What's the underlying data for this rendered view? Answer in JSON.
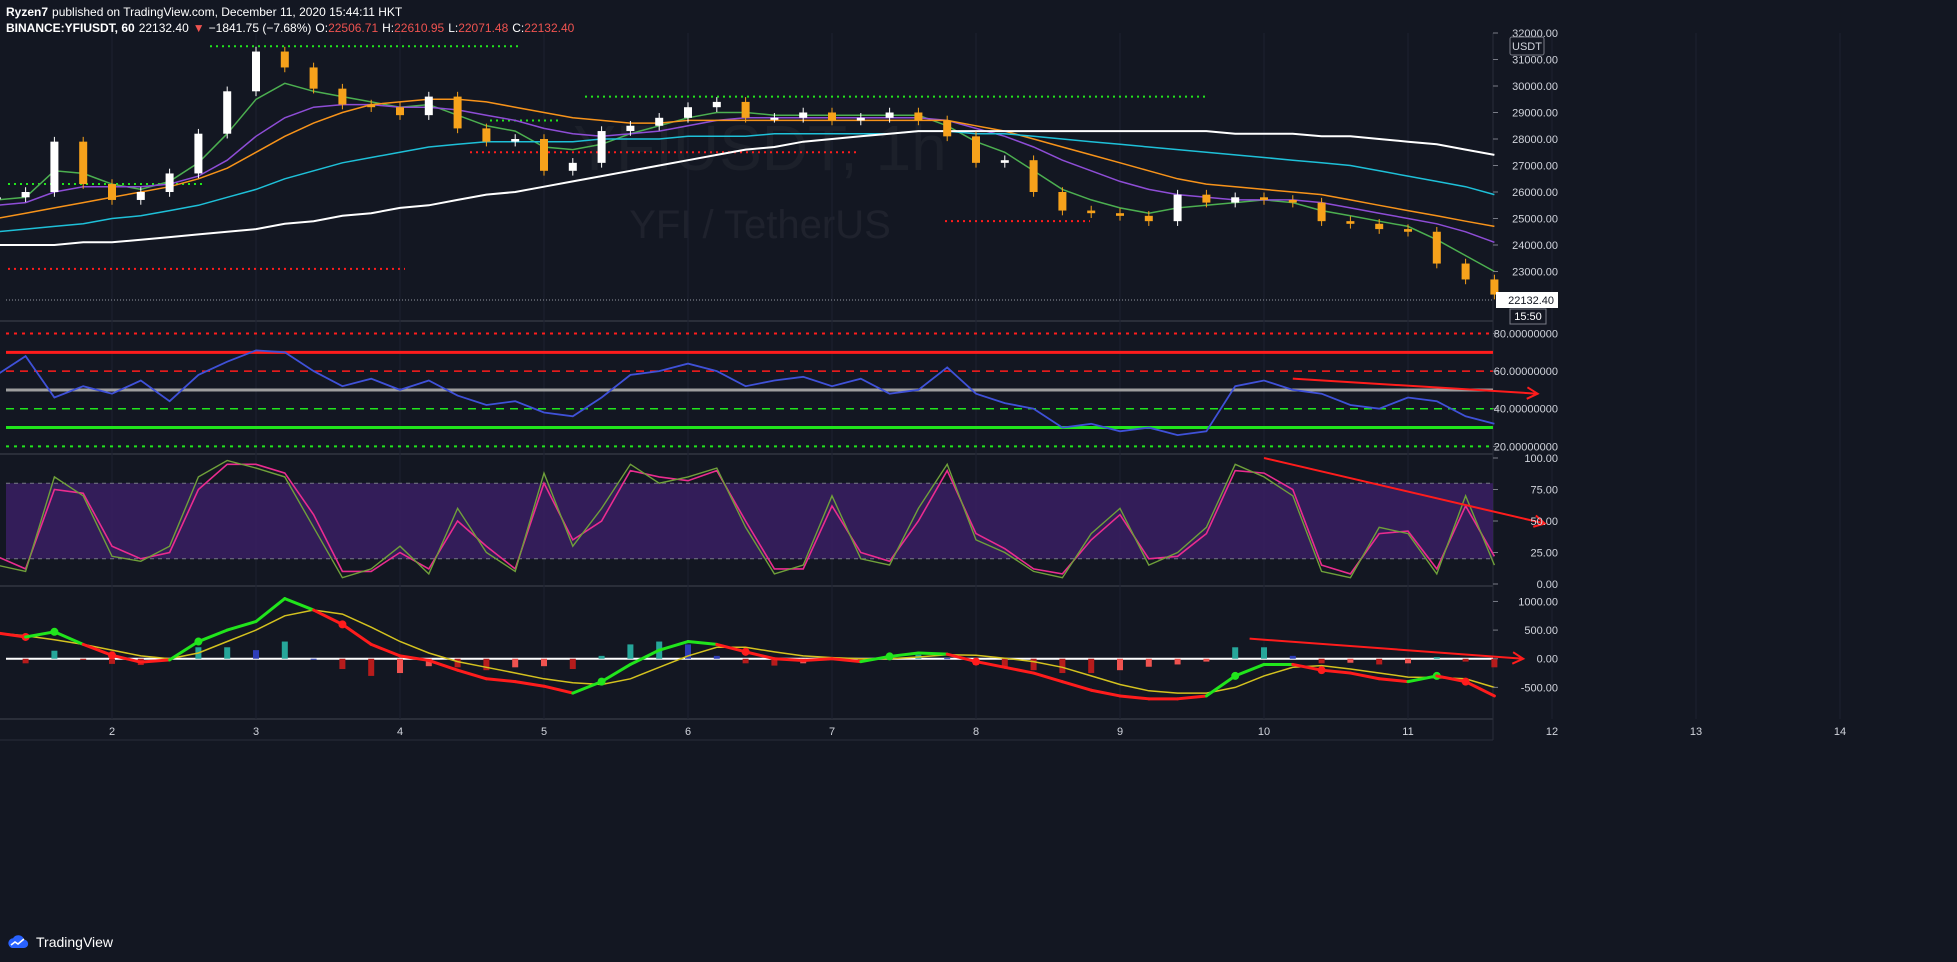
{
  "header": {
    "author": "Ryzen7",
    "published": "published on TradingView.com, December 11, 2020 15:44:11 HKT",
    "symbol": "BINANCE:YFIUSDT, 60",
    "last": "22132.40",
    "change": "−1841.75 (−7.68%)",
    "o_label": "O:",
    "o_val": "22506.71",
    "h_label": "H:",
    "h_val": "22610.95",
    "l_label": "L:",
    "l_val": "22071.48",
    "c_label": "C:",
    "c_val": "22132.40"
  },
  "watermark": {
    "ticker": "YFIUSDT, 1h",
    "name": "YFI / TetherUS"
  },
  "footer": {
    "brand": "TradingView"
  },
  "colors": {
    "background": "#131722",
    "up": "#ffffff",
    "down": "#f7a21b",
    "red": "#ff1c1c",
    "green": "#21e51c",
    "rsi": "#3f51d8",
    "stoch_fill": "#3a1f63",
    "pink": "#ea2c8f",
    "olive": "#6fa03a"
  },
  "chart_data": [
    {
      "type": "line",
      "pane": "price",
      "title": "",
      "currency": "USDT",
      "ylim": [
        22000,
        32000
      ],
      "y_ticks": [
        "32000.00",
        "31000.00",
        "30000.00",
        "29000.00",
        "28000.00",
        "27000.00",
        "26000.00",
        "25000.00",
        "24000.00",
        "23000.00"
      ],
      "x_tick_labels": [
        "2",
        "3",
        "4",
        "5",
        "6",
        "7",
        "8",
        "9",
        "10",
        "11",
        "12",
        "13",
        "14"
      ],
      "last_price_label": "22132.40",
      "countdown": "15:50",
      "x": [
        1.2,
        1.4,
        1.6,
        1.8,
        2.0,
        2.2,
        2.4,
        2.6,
        2.8,
        3.0,
        3.2,
        3.4,
        3.6,
        3.8,
        4.0,
        4.2,
        4.4,
        4.6,
        4.8,
        5.0,
        5.2,
        5.4,
        5.6,
        5.8,
        6.0,
        6.2,
        6.4,
        6.6,
        6.8,
        7.0,
        7.2,
        7.4,
        7.6,
        7.8,
        8.0,
        8.2,
        8.4,
        8.6,
        8.8,
        9.0,
        9.2,
        9.4,
        9.6,
        9.8,
        10.0,
        10.2,
        10.4,
        10.6,
        10.8,
        11.0,
        11.2,
        11.4,
        11.6
      ],
      "series": [
        {
          "role": "close",
          "values": [
            25800,
            26000,
            27900,
            26300,
            25700,
            26000,
            26700,
            28200,
            29800,
            31300,
            30700,
            29900,
            29300,
            29200,
            28900,
            29600,
            28400,
            27900,
            28000,
            26800,
            27100,
            28300,
            28500,
            28800,
            29200,
            29400,
            28800,
            28800,
            29000,
            28700,
            28800,
            29000,
            28700,
            28100,
            27100,
            27200,
            26000,
            25300,
            25200,
            25100,
            24900,
            25900,
            25600,
            25800,
            25700,
            25600,
            24900,
            24800,
            24600,
            24500,
            23300,
            22700,
            22130
          ]
        },
        {
          "role": "ma-fast",
          "values": [
            25700,
            25800,
            26800,
            26700,
            26300,
            26100,
            26400,
            27100,
            28200,
            29500,
            30100,
            29800,
            29600,
            29400,
            29200,
            29300,
            28900,
            28500,
            28300,
            27700,
            27600,
            27800,
            28200,
            28500,
            28800,
            29000,
            29000,
            28900,
            28900,
            28900,
            28900,
            28900,
            28900,
            28500,
            27900,
            27500,
            26800,
            26100,
            25700,
            25400,
            25200,
            25400,
            25500,
            25600,
            25700,
            25600,
            25300,
            25100,
            24900,
            24700,
            24200,
            23600,
            23000
          ]
        },
        {
          "role": "ma-mid",
          "values": [
            25500,
            25600,
            26000,
            26200,
            26200,
            26200,
            26300,
            26600,
            27200,
            28100,
            28800,
            29200,
            29300,
            29300,
            29200,
            29200,
            29100,
            28900,
            28700,
            28400,
            28200,
            28100,
            28200,
            28300,
            28500,
            28700,
            28800,
            28800,
            28800,
            28800,
            28800,
            28800,
            28800,
            28700,
            28400,
            28100,
            27700,
            27200,
            26800,
            26400,
            26100,
            25900,
            25800,
            25700,
            25700,
            25700,
            25600,
            25400,
            25200,
            25000,
            24800,
            24500,
            24100
          ]
        },
        {
          "role": "ma-orange",
          "values": [
            25000,
            25200,
            25400,
            25600,
            25800,
            26000,
            26200,
            26500,
            26900,
            27500,
            28100,
            28600,
            29000,
            29300,
            29400,
            29500,
            29500,
            29400,
            29200,
            29000,
            28800,
            28700,
            28600,
            28600,
            28700,
            28700,
            28700,
            28700,
            28700,
            28700,
            28700,
            28700,
            28700,
            28700,
            28500,
            28300,
            28000,
            27700,
            27400,
            27100,
            26800,
            26500,
            26300,
            26200,
            26100,
            26000,
            25900,
            25700,
            25500,
            25300,
            25100,
            24900,
            24700
          ]
        },
        {
          "role": "ma-cyan",
          "values": [
            24500,
            24600,
            24700,
            24800,
            25000,
            25100,
            25300,
            25500,
            25800,
            26100,
            26500,
            26800,
            27100,
            27300,
            27500,
            27700,
            27800,
            27900,
            27900,
            27900,
            27900,
            28000,
            28000,
            28000,
            28100,
            28100,
            28100,
            28200,
            28200,
            28200,
            28200,
            28200,
            28300,
            28300,
            28200,
            28200,
            28100,
            28000,
            27900,
            27800,
            27700,
            27600,
            27500,
            27400,
            27300,
            27200,
            27100,
            27000,
            26800,
            26600,
            26400,
            26200,
            25900
          ]
        },
        {
          "role": "ma-white",
          "values": [
            24000,
            24000,
            24000,
            24100,
            24100,
            24200,
            24300,
            24400,
            24500,
            24600,
            24800,
            24900,
            25100,
            25200,
            25400,
            25500,
            25700,
            25900,
            26000,
            26200,
            26400,
            26600,
            26800,
            27000,
            27200,
            27400,
            27600,
            27700,
            27900,
            28000,
            28100,
            28200,
            28300,
            28300,
            28300,
            28300,
            28300,
            28300,
            28300,
            28300,
            28300,
            28300,
            28300,
            28200,
            28200,
            28200,
            28100,
            28100,
            28000,
            27900,
            27800,
            27600,
            27400
          ]
        }
      ]
    },
    {
      "type": "line",
      "pane": "rsi",
      "ylim": [
        17,
        84
      ],
      "y_ticks": [
        "80.00000000",
        "60.00000000",
        "40.00000000",
        "20.00000000"
      ],
      "levels": {
        "red_dotted": 80,
        "red_solid": 70,
        "red_dashed": 60,
        "grey": 50,
        "green_dashed": 40,
        "green_solid": 30,
        "green_dotted": 20
      },
      "x": [
        1.2,
        1.4,
        1.6,
        1.8,
        2.0,
        2.2,
        2.4,
        2.6,
        2.8,
        3.0,
        3.2,
        3.4,
        3.6,
        3.8,
        4.0,
        4.2,
        4.4,
        4.6,
        4.8,
        5.0,
        5.2,
        5.4,
        5.6,
        5.8,
        6.0,
        6.2,
        6.4,
        6.6,
        6.8,
        7.0,
        7.2,
        7.4,
        7.6,
        7.8,
        8.0,
        8.2,
        8.4,
        8.6,
        8.8,
        9.0,
        9.2,
        9.4,
        9.6,
        9.8,
        10.0,
        10.2,
        10.4,
        10.6,
        10.8,
        11.0,
        11.2,
        11.4,
        11.6
      ],
      "series": [
        {
          "values": [
            58,
            68,
            46,
            52,
            48,
            55,
            44,
            58,
            65,
            71,
            70,
            60,
            52,
            56,
            50,
            55,
            47,
            42,
            44,
            38,
            36,
            46,
            58,
            60,
            64,
            60,
            52,
            55,
            57,
            52,
            56,
            48,
            50,
            62,
            48,
            43,
            40,
            30,
            32,
            28,
            30,
            26,
            28,
            52,
            55,
            50,
            48,
            42,
            40,
            46,
            44,
            36,
            32
          ]
        }
      ],
      "annotation": {
        "type": "arrow",
        "from": [
          10.2,
          56
        ],
        "to": [
          11.9,
          48
        ]
      }
    },
    {
      "type": "line",
      "pane": "stoch",
      "ylim": [
        0,
        100
      ],
      "y_ticks": [
        "100.00",
        "75.00",
        "50.00",
        "25.00",
        "0.00"
      ],
      "band": [
        20,
        80
      ],
      "x": [
        1.2,
        1.4,
        1.6,
        1.8,
        2.0,
        2.2,
        2.4,
        2.6,
        2.8,
        3.0,
        3.2,
        3.4,
        3.6,
        3.8,
        4.0,
        4.2,
        4.4,
        4.6,
        4.8,
        5.0,
        5.2,
        5.4,
        5.6,
        5.8,
        6.0,
        6.2,
        6.4,
        6.6,
        6.8,
        7.0,
        7.2,
        7.4,
        7.6,
        7.8,
        8.0,
        8.2,
        8.4,
        8.6,
        8.8,
        9.0,
        9.2,
        9.4,
        9.6,
        9.8,
        10.0,
        10.2,
        10.4,
        10.6,
        10.8,
        11.0,
        11.2,
        11.4,
        11.6
      ],
      "series": [
        {
          "name": "",
          "values": [
            15,
            10,
            85,
            70,
            22,
            18,
            30,
            85,
            98,
            92,
            85,
            45,
            5,
            12,
            30,
            8,
            60,
            25,
            10,
            88,
            30,
            60,
            95,
            80,
            85,
            92,
            45,
            8,
            15,
            70,
            20,
            15,
            60,
            95,
            35,
            25,
            10,
            5,
            40,
            60,
            15,
            25,
            45,
            95,
            85,
            70,
            10,
            5,
            45,
            40,
            8,
            70,
            15
          ]
        },
        {
          "name": "",
          "values": [
            22,
            12,
            75,
            72,
            30,
            20,
            25,
            75,
            95,
            95,
            88,
            55,
            10,
            10,
            25,
            12,
            50,
            30,
            12,
            80,
            35,
            50,
            90,
            85,
            82,
            90,
            50,
            12,
            12,
            62,
            25,
            18,
            50,
            90,
            40,
            28,
            12,
            8,
            35,
            55,
            20,
            22,
            40,
            90,
            88,
            75,
            15,
            8,
            40,
            42,
            12,
            62,
            22
          ]
        }
      ],
      "annotation": {
        "type": "arrow",
        "from": [
          10.0,
          100
        ],
        "to": [
          11.95,
          48
        ]
      }
    },
    {
      "type": "bar",
      "pane": "macd",
      "ylim": [
        -1000,
        1200
      ],
      "y_ticks": [
        "1000.00",
        "500.00",
        "0.00",
        "-500.00"
      ],
      "x": [
        1.2,
        1.4,
        1.6,
        1.8,
        2.0,
        2.2,
        2.4,
        2.6,
        2.8,
        3.0,
        3.2,
        3.4,
        3.6,
        3.8,
        4.0,
        4.2,
        4.4,
        4.6,
        4.8,
        5.0,
        5.2,
        5.4,
        5.6,
        5.8,
        6.0,
        6.2,
        6.4,
        6.6,
        6.8,
        7.0,
        7.2,
        7.4,
        7.6,
        7.8,
        8.0,
        8.2,
        8.4,
        8.6,
        8.8,
        9.0,
        9.2,
        9.4,
        9.6,
        9.8,
        10.0,
        10.2,
        10.4,
        10.6,
        10.8,
        11.0,
        11.2,
        11.4,
        11.6
      ],
      "series": [
        {
          "role": "macd",
          "values": [
            450,
            380,
            470,
            250,
            60,
            -60,
            -20,
            300,
            500,
            650,
            1050,
            850,
            600,
            250,
            50,
            -30,
            -200,
            -350,
            -400,
            -480,
            -600,
            -400,
            -100,
            150,
            300,
            250,
            120,
            0,
            -30,
            0,
            -50,
            40,
            100,
            80,
            -50,
            -150,
            -250,
            -400,
            -550,
            -650,
            -700,
            -700,
            -650,
            -300,
            -100,
            -100,
            -200,
            -250,
            -350,
            -400,
            -300,
            -400,
            -650
          ]
        },
        {
          "role": "signal",
          "values": [
            450,
            400,
            330,
            250,
            150,
            50,
            0,
            100,
            300,
            500,
            750,
            850,
            780,
            550,
            300,
            100,
            -50,
            -150,
            -250,
            -350,
            -420,
            -450,
            -350,
            -150,
            50,
            200,
            200,
            120,
            50,
            20,
            0,
            0,
            30,
            70,
            60,
            10,
            -50,
            -150,
            -300,
            -450,
            -560,
            -600,
            -600,
            -500,
            -300,
            -150,
            -120,
            -180,
            -250,
            -320,
            -330,
            -350,
            -500
          ]
        },
        {
          "role": "histogram",
          "values": [
            -20,
            -80,
            140,
            -20,
            -90,
            -110,
            -20,
            200,
            200,
            150,
            300,
            0,
            -180,
            -300,
            -250,
            -130,
            -150,
            -200,
            -150,
            -130,
            -180,
            50,
            250,
            300,
            250,
            50,
            -80,
            -120,
            -80,
            -20,
            -50,
            40,
            70,
            10,
            -110,
            -160,
            -200,
            -250,
            -250,
            -200,
            -140,
            -100,
            -50,
            200,
            200,
            50,
            -80,
            -70,
            -100,
            -80,
            30,
            -50,
            -150
          ]
        }
      ],
      "annotation": {
        "type": "arrow",
        "from": [
          9.9,
          350
        ],
        "to": [
          11.8,
          0
        ]
      }
    }
  ]
}
